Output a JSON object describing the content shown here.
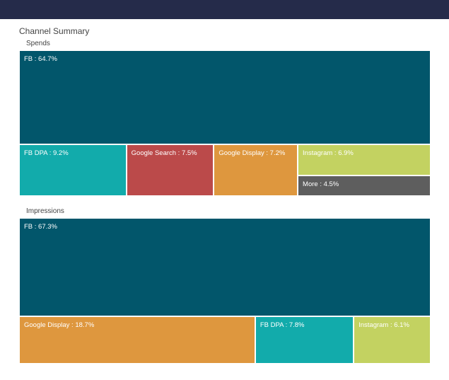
{
  "header": {
    "title": "Channel Summary"
  },
  "chart_data": [
    {
      "type": "treemap",
      "title": "Spends",
      "unit": "%",
      "items": [
        {
          "name": "FB",
          "value": 64.7,
          "color": "#02566b"
        },
        {
          "name": "FB DPA",
          "value": 9.2,
          "color": "#12abab"
        },
        {
          "name": "Google Search",
          "value": 7.5,
          "color": "#bb4a4a"
        },
        {
          "name": "Google Display",
          "value": 7.2,
          "color": "#de973e"
        },
        {
          "name": "Instagram",
          "value": 6.9,
          "color": "#c3d261"
        },
        {
          "name": "More",
          "value": 4.5,
          "color": "#5e5e5e"
        }
      ]
    },
    {
      "type": "treemap",
      "title": "Impressions",
      "unit": "%",
      "items": [
        {
          "name": "FB",
          "value": 67.3,
          "color": "#02566b"
        },
        {
          "name": "Google Display",
          "value": 18.7,
          "color": "#de973e"
        },
        {
          "name": "FB DPA",
          "value": 7.8,
          "color": "#12abab"
        },
        {
          "name": "Instagram",
          "value": 6.1,
          "color": "#c3d261"
        }
      ]
    }
  ]
}
